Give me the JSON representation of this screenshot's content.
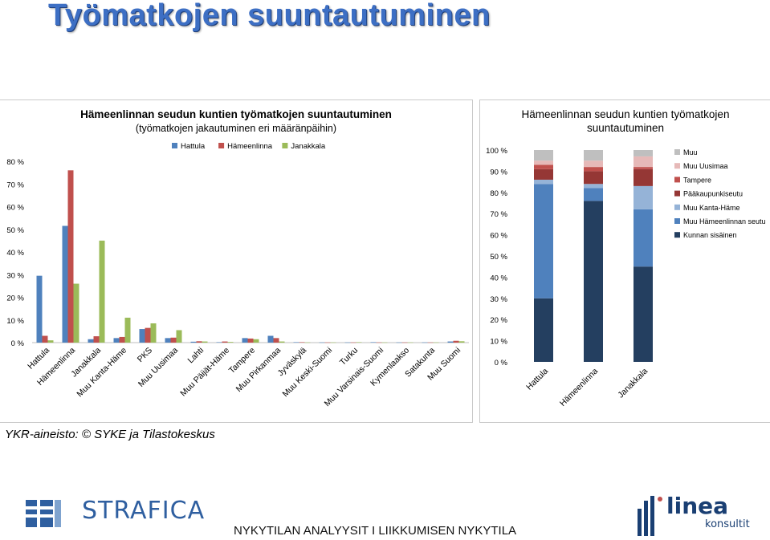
{
  "page": {
    "title": "Työmatkojen suuntautuminen",
    "source": "YKR-aineisto: © SYKE ja Tilastokeskus",
    "footer": "NYKYTILAN ANALYYSIT  I  LIIKKUMISEN NYKYTILA",
    "logo_left": "STRAFICA",
    "logo_right_word": "linea",
    "logo_right_sub": "konsultit"
  },
  "chart_data": [
    {
      "type": "bar",
      "title": "Hämeenlinnan seudun kuntien työmatkojen suuntautuminen",
      "subtitle": "(työmatkojen jakautuminen eri määränpäihin)",
      "categories": [
        "Hattula",
        "Hämeenlinna",
        "Janakkala",
        "Muu Kanta-Häme",
        "PKS",
        "Muu Uusimaa",
        "Lahti",
        "Muu Päijät-Häme",
        "Tampere",
        "Muu Pirkanmaa",
        "Jyväskylä",
        "Muu Keski-Suomi",
        "Turku",
        "Muu Varsinais-Suomi",
        "Kymenlaakso",
        "Satakunta",
        "Muu Suomi"
      ],
      "series": [
        {
          "name": "Hattula",
          "color": "#4f81bd",
          "values": [
            29.5,
            51.5,
            1.5,
            2.0,
            6.0,
            2.0,
            0.4,
            0.2,
            2.0,
            3.0,
            0.2,
            0.1,
            0.1,
            0.2,
            0.1,
            0.1,
            0.5
          ]
        },
        {
          "name": "Hämeenlinna",
          "color": "#c0504d",
          "values": [
            3.0,
            76.0,
            2.8,
            2.5,
            6.5,
            2.2,
            0.6,
            0.5,
            1.8,
            2.0,
            0.2,
            0.1,
            0.1,
            0.1,
            0.1,
            0.1,
            0.8
          ]
        },
        {
          "name": "Janakkala",
          "color": "#9bbb59",
          "values": [
            1.0,
            26.0,
            45.0,
            11.0,
            8.5,
            5.5,
            0.5,
            0.3,
            1.5,
            0.5,
            0.1,
            0.1,
            0.2,
            0.1,
            0.1,
            0.1,
            0.6
          ]
        }
      ],
      "y_ticks": [
        "0 %",
        "10 %",
        "20 %",
        "30 %",
        "40 %",
        "50 %",
        "60 %",
        "70 %",
        "80 %"
      ],
      "ylim": [
        0,
        80
      ],
      "legend_position": "top",
      "grid": false
    },
    {
      "type": "bar",
      "stacked": true,
      "title_lines": [
        "Hämeenlinnan seudun kuntien työmatkojen",
        "suuntautuminen"
      ],
      "categories": [
        "Hattula",
        "Hämeenlinna",
        "Janakkala"
      ],
      "series": [
        {
          "name": "Kunnan sisäinen",
          "color": "#243f60",
          "values": [
            30,
            76,
            45
          ]
        },
        {
          "name": "Muu Hämeenlinnan seutu",
          "color": "#4f81bd",
          "values": [
            54,
            6,
            27
          ]
        },
        {
          "name": "Muu Kanta-Häme",
          "color": "#95b3d7",
          "values": [
            2,
            2,
            11
          ]
        },
        {
          "name": "Pääkaupunkiseutu",
          "color": "#953735",
          "values": [
            5,
            6,
            8
          ]
        },
        {
          "name": "Tampere",
          "color": "#c0504d",
          "values": [
            2,
            2,
            1
          ]
        },
        {
          "name": "Muu Uusimaa",
          "color": "#e6b9b8",
          "values": [
            2,
            3,
            5
          ]
        },
        {
          "name": "Muu",
          "color": "#bfbfbf",
          "values": [
            5,
            5,
            3
          ]
        }
      ],
      "y_ticks": [
        "0 %",
        "10 %",
        "20 %",
        "30 %",
        "40 %",
        "50 %",
        "60 %",
        "70 %",
        "80 %",
        "90 %",
        "100 %"
      ],
      "ylim": [
        0,
        100
      ],
      "legend_position": "right",
      "grid": false
    }
  ]
}
